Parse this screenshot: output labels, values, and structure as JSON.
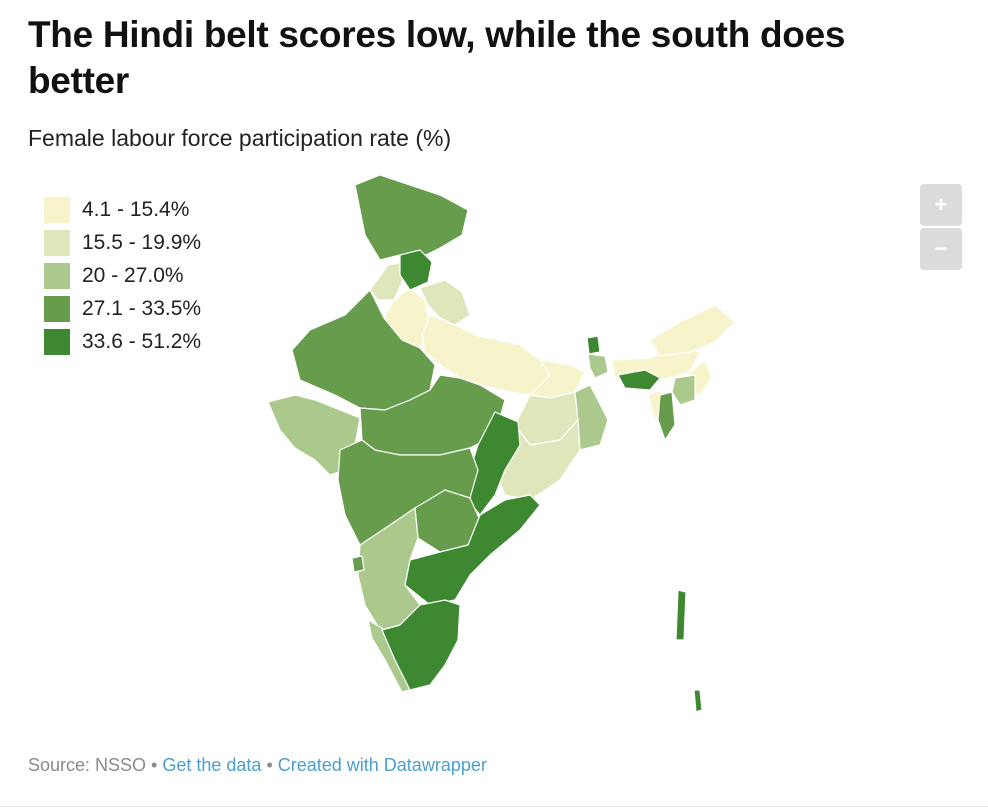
{
  "title": "The Hindi belt scores low, while the south does better",
  "subtitle": "Female labour force participation rate (%)",
  "legend": [
    {
      "label": "4.1 - 15.4%",
      "color": "#f7f4cc"
    },
    {
      "label": "15.5 - 19.9%",
      "color": "#dfe6bb"
    },
    {
      "label": "20 - 27.0%",
      "color": "#abc98c"
    },
    {
      "label": "27.1 - 33.5%",
      "color": "#679c4d"
    },
    {
      "label": "33.6 - 51.2%",
      "color": "#3d8830"
    }
  ],
  "zoom": {
    "in": "+",
    "out": "−"
  },
  "footer": {
    "source": "Source: NSSO",
    "separator": " • ",
    "get_data": "Get the data",
    "created_with": "Created with Datawrapper"
  }
}
